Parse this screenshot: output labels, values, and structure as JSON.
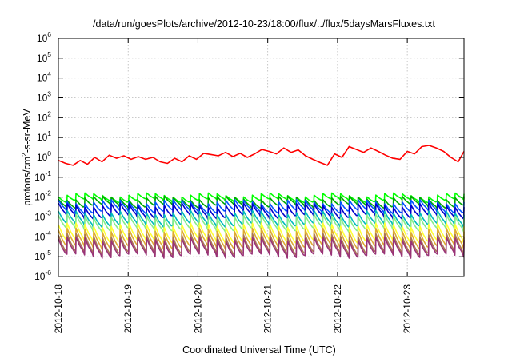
{
  "chart_data": {
    "type": "line",
    "title": "/data/run/goesPlots/archive/2012-10-23/18:00/flux/../flux/5daysMarsFluxes.txt",
    "xlabel": "Coordinated Universal Time (UTC)",
    "ylabel": {
      "prefix": "protons/cm",
      "sup": "2",
      "suffix": "-s-sr-MeV"
    },
    "xscale": "time",
    "xlim": [
      "2012-10-18",
      "2012-10-23T19:30"
    ],
    "xticks": [
      "2012-10-18",
      "2012-10-19",
      "2012-10-20",
      "2012-10-21",
      "2012-10-22",
      "2012-10-23"
    ],
    "yscale": "log",
    "ylim": [
      1e-06,
      1000000.0
    ],
    "yticks": [
      {
        "base": "10",
        "exp": "-6"
      },
      {
        "base": "10",
        "exp": "-5"
      },
      {
        "base": "10",
        "exp": "-4"
      },
      {
        "base": "10",
        "exp": "-3"
      },
      {
        "base": "10",
        "exp": "-2"
      },
      {
        "base": "10",
        "exp": "-1"
      },
      {
        "base": "10",
        "exp": "0"
      },
      {
        "base": "10",
        "exp": "1"
      },
      {
        "base": "10",
        "exp": "2"
      },
      {
        "base": "10",
        "exp": "3"
      },
      {
        "base": "10",
        "exp": "4"
      },
      {
        "base": "10",
        "exp": "5"
      },
      {
        "base": "10",
        "exp": "6"
      }
    ],
    "grid": true,
    "legend": "none",
    "series": [
      {
        "color": "#ff0000",
        "x": [
          "2012-10-18T00:00",
          "2012-10-18T02:30",
          "2012-10-18T05:00",
          "2012-10-18T07:30",
          "2012-10-18T10:00",
          "2012-10-18T12:30",
          "2012-10-18T15:00",
          "2012-10-18T17:30",
          "2012-10-18T20:00",
          "2012-10-18T22:30",
          "2012-10-19T01:00",
          "2012-10-19T03:30",
          "2012-10-19T06:00",
          "2012-10-19T08:30",
          "2012-10-19T11:00",
          "2012-10-19T13:30",
          "2012-10-19T16:00",
          "2012-10-19T18:30",
          "2012-10-19T21:00",
          "2012-10-19T23:30",
          "2012-10-20T02:00",
          "2012-10-20T04:30",
          "2012-10-20T07:00",
          "2012-10-20T09:30",
          "2012-10-20T12:00",
          "2012-10-20T14:30",
          "2012-10-20T17:00",
          "2012-10-20T19:30",
          "2012-10-20T22:00",
          "2012-10-21T00:30",
          "2012-10-21T03:00",
          "2012-10-21T05:30",
          "2012-10-21T08:00",
          "2012-10-21T10:30",
          "2012-10-21T13:00",
          "2012-10-21T15:30",
          "2012-10-21T18:00",
          "2012-10-21T20:30",
          "2012-10-21T23:00",
          "2012-10-22T01:30",
          "2012-10-22T04:00",
          "2012-10-22T06:30",
          "2012-10-22T09:00",
          "2012-10-22T11:30",
          "2012-10-22T14:00",
          "2012-10-22T16:30",
          "2012-10-22T19:00",
          "2012-10-22T21:30",
          "2012-10-23T00:00",
          "2012-10-23T02:30",
          "2012-10-23T05:00",
          "2012-10-23T07:30",
          "2012-10-23T10:00",
          "2012-10-23T12:30",
          "2012-10-23T15:00",
          "2012-10-23T17:30",
          "2012-10-23T19:30"
        ],
        "y": [
          0.7,
          0.5,
          0.4,
          0.7,
          0.45,
          1.0,
          0.6,
          1.3,
          0.9,
          1.2,
          0.8,
          1.1,
          0.8,
          1.0,
          0.6,
          0.5,
          0.9,
          0.6,
          1.2,
          0.8,
          1.6,
          1.4,
          1.2,
          1.8,
          1.1,
          1.6,
          1.0,
          1.5,
          2.5,
          2.0,
          1.5,
          3.0,
          1.8,
          2.4,
          1.2,
          0.8,
          0.55,
          0.4,
          1.5,
          1.0,
          3.5,
          2.5,
          1.8,
          3.0,
          2.0,
          1.3,
          0.9,
          0.8,
          2.0,
          1.5,
          3.5,
          4.0,
          3.0,
          2.0,
          1.0,
          0.6,
          2.0
        ]
      },
      {
        "color": "#00ff00",
        "base": 0.013,
        "ratio": 0.5,
        "spikes": 46
      },
      {
        "color": "#00aa00",
        "base": 0.009,
        "ratio": 0.38,
        "spikes": 46
      },
      {
        "color": "#0055ff",
        "base": 0.006,
        "ratio": 0.3,
        "spikes": 46
      },
      {
        "color": "#0000cc",
        "base": 0.004,
        "ratio": 0.25,
        "spikes": 46
      },
      {
        "color": "#00bbbb",
        "base": 0.0017,
        "ratio": 0.22,
        "spikes": 46
      },
      {
        "color": "#88ee88",
        "base": 0.0011,
        "ratio": 0.2,
        "spikes": 46
      },
      {
        "color": "#ffff33",
        "base": 0.0004,
        "ratio": 0.14,
        "spikes": 46
      },
      {
        "color": "#ddaa33",
        "base": 0.00022,
        "ratio": 0.13,
        "spikes": 46
      },
      {
        "color": "#aa7755",
        "base": 0.00012,
        "ratio": 0.12,
        "spikes": 46
      },
      {
        "color": "#993377",
        "base": 8e-05,
        "ratio": 0.14,
        "spikes": 46
      }
    ]
  }
}
